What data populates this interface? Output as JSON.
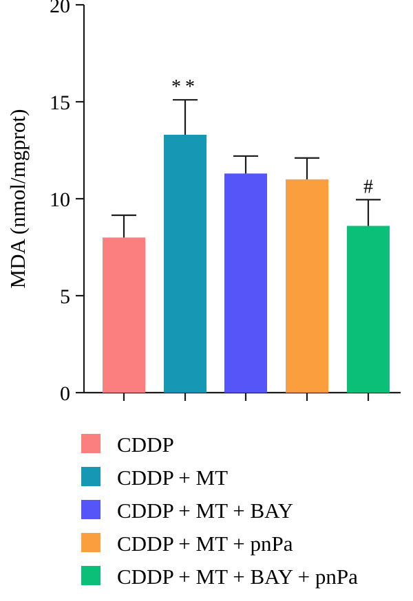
{
  "chart_data": {
    "type": "bar",
    "ylabel": "MDA (nmol/mgprot)",
    "ylim": [
      0,
      20
    ],
    "yticks": [
      0,
      5,
      10,
      15,
      20
    ],
    "categories": [
      "CDDP",
      "CDDP + MT",
      "CDDP + MT + BAY",
      "CDDP + MT + pnPa",
      "CDDP + MT + BAY + pnPa"
    ],
    "values": [
      8.0,
      13.3,
      11.3,
      11.0,
      8.6
    ],
    "errors": [
      1.15,
      1.8,
      0.9,
      1.1,
      1.35
    ],
    "annotations": [
      "",
      "**",
      "",
      "",
      "#"
    ],
    "colors": [
      "#fb7f7f",
      "#1697b4",
      "#5656f8",
      "#fb9e3e",
      "#0bbf79"
    ],
    "legend_position": "bottom"
  }
}
